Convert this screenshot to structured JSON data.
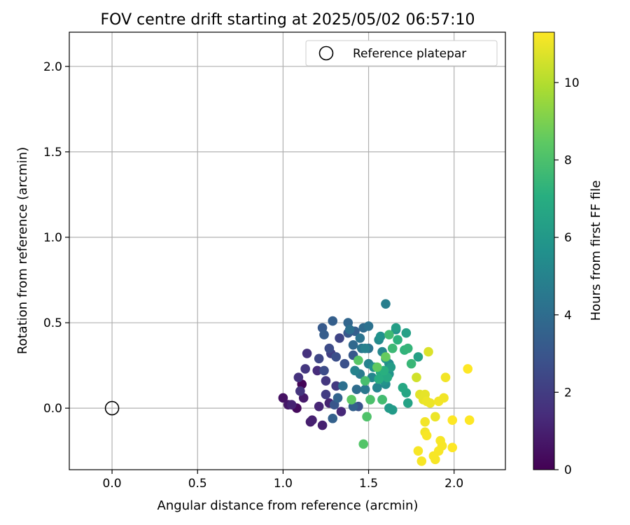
{
  "chart_data": {
    "type": "scatter",
    "title": "FOV centre drift starting at 2025/05/02 06:57:10",
    "xlabel": "Angular distance from reference (arcmin)",
    "ylabel": "Rotation from reference (arcmin)",
    "xlim": [
      -0.25,
      2.3
    ],
    "ylim": [
      -0.36,
      2.2
    ],
    "xticks": [
      0.0,
      0.5,
      1.0,
      1.5,
      2.0
    ],
    "xtick_labels": [
      "0.0",
      "0.5",
      "1.0",
      "1.5",
      "2.0"
    ],
    "yticks": [
      0.0,
      0.5,
      1.0,
      1.5,
      2.0
    ],
    "ytick_labels": [
      "0.0",
      "0.5",
      "1.0",
      "1.5",
      "2.0"
    ],
    "grid": true,
    "legend": {
      "position": "upper right",
      "entries": [
        "Reference platepar"
      ]
    },
    "reference_point": {
      "label": "Reference platepar",
      "x": 0.0,
      "y": 0.0
    },
    "colorbar": {
      "label": "Hours from first FF file",
      "colormap": "viridis",
      "range": [
        0,
        11.3
      ],
      "ticks": [
        0,
        2,
        4,
        6,
        8,
        10
      ],
      "tick_labels": [
        "0",
        "2",
        "4",
        "6",
        "8",
        "10"
      ]
    },
    "points": [
      {
        "x": 1.11,
        "y": 0.14,
        "hours": 0.1
      },
      {
        "x": 1.08,
        "y": 0.0,
        "hours": 0.3
      },
      {
        "x": 1.0,
        "y": 0.06,
        "hours": 0.5
      },
      {
        "x": 1.03,
        "y": 0.02,
        "hours": 0.7
      },
      {
        "x": 1.12,
        "y": 0.06,
        "hours": 0.8
      },
      {
        "x": 1.16,
        "y": -0.08,
        "hours": 0.9
      },
      {
        "x": 1.23,
        "y": -0.1,
        "hours": 1.0
      },
      {
        "x": 1.17,
        "y": -0.07,
        "hours": 1.0
      },
      {
        "x": 1.05,
        "y": 0.02,
        "hours": 1.1
      },
      {
        "x": 1.27,
        "y": 0.03,
        "hours": 1.1
      },
      {
        "x": 1.21,
        "y": 0.01,
        "hours": 1.2
      },
      {
        "x": 1.34,
        "y": -0.02,
        "hours": 1.3
      },
      {
        "x": 1.2,
        "y": 0.22,
        "hours": 1.4
      },
      {
        "x": 1.14,
        "y": 0.32,
        "hours": 1.6
      },
      {
        "x": 1.09,
        "y": 0.18,
        "hours": 1.6
      },
      {
        "x": 1.1,
        "y": 0.1,
        "hours": 1.7
      },
      {
        "x": 1.13,
        "y": 0.23,
        "hours": 1.8
      },
      {
        "x": 1.25,
        "y": 0.16,
        "hours": 1.8
      },
      {
        "x": 1.31,
        "y": 0.13,
        "hours": 1.9
      },
      {
        "x": 1.25,
        "y": 0.08,
        "hours": 2.0
      },
      {
        "x": 1.28,
        "y": 0.32,
        "hours": 2.1
      },
      {
        "x": 1.33,
        "y": 0.41,
        "hours": 2.3
      },
      {
        "x": 1.21,
        "y": 0.29,
        "hours": 2.4
      },
      {
        "x": 1.24,
        "y": 0.22,
        "hours": 2.6
      },
      {
        "x": 1.27,
        "y": 0.35,
        "hours": 2.6
      },
      {
        "x": 1.31,
        "y": 0.3,
        "hours": 2.7
      },
      {
        "x": 1.36,
        "y": 0.26,
        "hours": 2.8
      },
      {
        "x": 1.44,
        "y": 0.01,
        "hours": 2.9
      },
      {
        "x": 1.3,
        "y": 0.02,
        "hours": 3.0
      },
      {
        "x": 1.38,
        "y": 0.44,
        "hours": 3.1
      },
      {
        "x": 1.41,
        "y": 0.31,
        "hours": 3.1
      },
      {
        "x": 1.23,
        "y": 0.47,
        "hours": 3.2
      },
      {
        "x": 1.24,
        "y": 0.43,
        "hours": 3.3
      },
      {
        "x": 1.29,
        "y": 0.51,
        "hours": 3.4
      },
      {
        "x": 1.42,
        "y": 0.45,
        "hours": 3.4
      },
      {
        "x": 1.29,
        "y": -0.06,
        "hours": 3.5
      },
      {
        "x": 1.41,
        "y": 0.01,
        "hours": 3.5
      },
      {
        "x": 1.32,
        "y": 0.06,
        "hours": 3.6
      },
      {
        "x": 1.38,
        "y": 0.5,
        "hours": 3.7
      },
      {
        "x": 1.41,
        "y": 0.37,
        "hours": 3.8
      },
      {
        "x": 1.47,
        "y": 0.47,
        "hours": 3.9
      },
      {
        "x": 1.43,
        "y": 0.11,
        "hours": 4.0
      },
      {
        "x": 1.35,
        "y": 0.13,
        "hours": 4.1
      },
      {
        "x": 1.39,
        "y": 0.46,
        "hours": 4.1
      },
      {
        "x": 1.5,
        "y": 0.48,
        "hours": 4.2
      },
      {
        "x": 1.45,
        "y": 0.41,
        "hours": 4.3
      },
      {
        "x": 1.5,
        "y": 0.35,
        "hours": 4.3
      },
      {
        "x": 1.46,
        "y": 0.35,
        "hours": 4.4
      },
      {
        "x": 1.48,
        "y": 0.11,
        "hours": 4.5
      },
      {
        "x": 1.45,
        "y": 0.2,
        "hours": 4.6
      },
      {
        "x": 1.55,
        "y": 0.12,
        "hours": 4.7
      },
      {
        "x": 1.6,
        "y": 0.61,
        "hours": 4.8
      },
      {
        "x": 1.48,
        "y": 0.35,
        "hours": 4.9
      },
      {
        "x": 1.5,
        "y": 0.26,
        "hours": 4.9
      },
      {
        "x": 1.42,
        "y": 0.22,
        "hours": 5.0
      },
      {
        "x": 1.52,
        "y": 0.18,
        "hours": 5.1
      },
      {
        "x": 1.55,
        "y": 0.12,
        "hours": 5.1
      },
      {
        "x": 1.58,
        "y": 0.33,
        "hours": 5.2
      },
      {
        "x": 1.56,
        "y": 0.4,
        "hours": 5.3
      },
      {
        "x": 1.6,
        "y": 0.14,
        "hours": 5.4
      },
      {
        "x": 1.62,
        "y": 0.26,
        "hours": 5.4
      },
      {
        "x": 1.66,
        "y": 0.46,
        "hours": 5.5
      },
      {
        "x": 1.53,
        "y": 0.24,
        "hours": 5.6
      },
      {
        "x": 1.57,
        "y": 0.42,
        "hours": 5.7
      },
      {
        "x": 1.59,
        "y": 0.16,
        "hours": 5.8
      },
      {
        "x": 1.62,
        "y": 0.2,
        "hours": 5.8
      },
      {
        "x": 1.6,
        "y": 0.29,
        "hours": 5.9
      },
      {
        "x": 1.58,
        "y": 0.05,
        "hours": 6.0
      },
      {
        "x": 1.62,
        "y": 0.0,
        "hours": 6.1
      },
      {
        "x": 1.64,
        "y": -0.01,
        "hours": 6.1
      },
      {
        "x": 1.63,
        "y": 0.24,
        "hours": 6.2
      },
      {
        "x": 1.66,
        "y": 0.47,
        "hours": 6.3
      },
      {
        "x": 1.72,
        "y": 0.44,
        "hours": 6.4
      },
      {
        "x": 1.79,
        "y": 0.3,
        "hours": 6.4
      },
      {
        "x": 1.73,
        "y": 0.03,
        "hours": 6.5
      },
      {
        "x": 1.72,
        "y": 0.09,
        "hours": 6.6
      },
      {
        "x": 1.7,
        "y": 0.12,
        "hours": 6.7
      },
      {
        "x": 1.61,
        "y": 0.18,
        "hours": 6.8
      },
      {
        "x": 1.57,
        "y": 0.21,
        "hours": 6.9
      },
      {
        "x": 1.56,
        "y": 0.17,
        "hours": 7.0
      },
      {
        "x": 1.59,
        "y": 0.22,
        "hours": 7.1
      },
      {
        "x": 1.67,
        "y": 0.4,
        "hours": 7.2
      },
      {
        "x": 1.71,
        "y": 0.34,
        "hours": 7.3
      },
      {
        "x": 1.73,
        "y": 0.35,
        "hours": 7.4
      },
      {
        "x": 1.75,
        "y": 0.26,
        "hours": 7.5
      },
      {
        "x": 1.64,
        "y": 0.35,
        "hours": 7.6
      },
      {
        "x": 1.62,
        "y": 0.43,
        "hours": 7.7
      },
      {
        "x": 1.58,
        "y": 0.05,
        "hours": 7.8
      },
      {
        "x": 1.48,
        "y": 0.16,
        "hours": 7.9
      },
      {
        "x": 1.51,
        "y": 0.05,
        "hours": 8.0
      },
      {
        "x": 1.49,
        "y": -0.05,
        "hours": 8.1
      },
      {
        "x": 1.47,
        "y": -0.21,
        "hours": 8.2
      },
      {
        "x": 1.44,
        "y": 0.28,
        "hours": 8.3
      },
      {
        "x": 1.4,
        "y": 0.05,
        "hours": 8.4
      },
      {
        "x": 1.55,
        "y": 0.24,
        "hours": 8.5
      },
      {
        "x": 1.6,
        "y": 0.3,
        "hours": 8.6
      },
      {
        "x": 1.78,
        "y": 0.18,
        "hours": 10.5
      },
      {
        "x": 1.85,
        "y": 0.33,
        "hours": 10.7
      },
      {
        "x": 1.8,
        "y": 0.08,
        "hours": 10.8
      },
      {
        "x": 1.82,
        "y": 0.05,
        "hours": 10.9
      },
      {
        "x": 1.83,
        "y": 0.08,
        "hours": 10.9
      },
      {
        "x": 1.84,
        "y": 0.04,
        "hours": 11.0
      },
      {
        "x": 1.86,
        "y": 0.03,
        "hours": 11.0
      },
      {
        "x": 1.89,
        "y": -0.05,
        "hours": 11.0
      },
      {
        "x": 1.91,
        "y": 0.04,
        "hours": 11.1
      },
      {
        "x": 1.94,
        "y": 0.06,
        "hours": 11.1
      },
      {
        "x": 1.95,
        "y": 0.18,
        "hours": 11.1
      },
      {
        "x": 1.83,
        "y": -0.08,
        "hours": 11.1
      },
      {
        "x": 1.83,
        "y": -0.14,
        "hours": 11.1
      },
      {
        "x": 1.84,
        "y": -0.16,
        "hours": 11.2
      },
      {
        "x": 1.92,
        "y": -0.19,
        "hours": 11.2
      },
      {
        "x": 1.93,
        "y": -0.22,
        "hours": 11.2
      },
      {
        "x": 1.91,
        "y": -0.25,
        "hours": 11.2
      },
      {
        "x": 1.88,
        "y": -0.28,
        "hours": 11.2
      },
      {
        "x": 1.89,
        "y": -0.3,
        "hours": 11.2
      },
      {
        "x": 1.81,
        "y": -0.31,
        "hours": 11.2
      },
      {
        "x": 1.79,
        "y": -0.25,
        "hours": 11.2
      },
      {
        "x": 1.99,
        "y": -0.07,
        "hours": 11.3
      },
      {
        "x": 1.99,
        "y": -0.23,
        "hours": 11.3
      },
      {
        "x": 2.08,
        "y": 0.23,
        "hours": 11.3
      },
      {
        "x": 2.09,
        "y": -0.07,
        "hours": 11.3
      }
    ]
  }
}
